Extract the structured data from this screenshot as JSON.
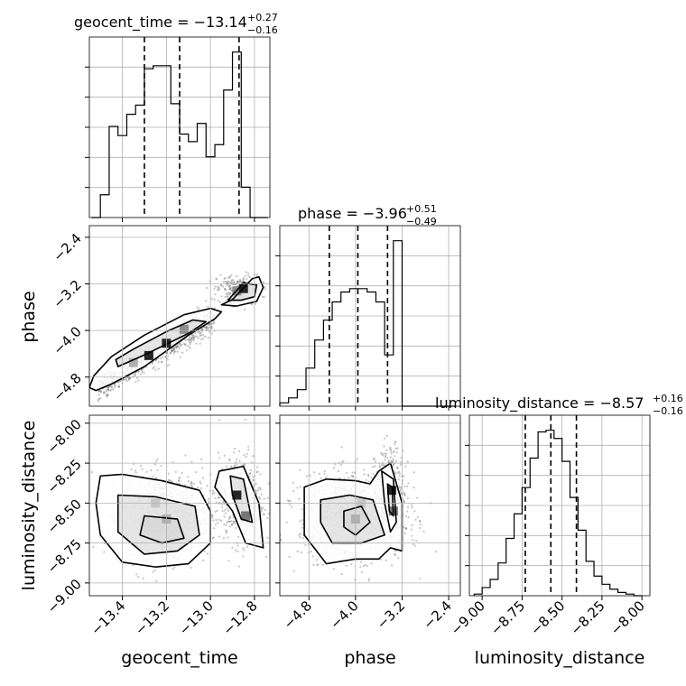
{
  "chart_data": {
    "type": "corner",
    "parameters": [
      "geocent_time",
      "phase",
      "luminosity_distance"
    ],
    "axes": {
      "geocent_time": {
        "range": [
          -13.55,
          -12.73
        ],
        "ticks": [
          -13.4,
          -13.2,
          -13.0,
          -12.8
        ],
        "tick_labels": [
          "−13.4",
          "−13.2",
          "−13.0",
          "−12.8"
        ]
      },
      "phase": {
        "range": [
          -5.3,
          -2.2
        ],
        "ticks": [
          -4.8,
          -4.0,
          -3.2,
          -2.4
        ],
        "tick_labels": [
          "−4.8",
          "−4.0",
          "−3.2",
          "−2.4"
        ]
      },
      "luminosity_distance": {
        "range": [
          -9.08,
          -7.95
        ],
        "ticks": [
          -9.0,
          -8.75,
          -8.5,
          -8.25,
          -8.0
        ],
        "tick_labels": [
          "−9.00",
          "−8.75",
          "−8.50",
          "−8.25",
          "−8.00"
        ]
      }
    },
    "titles": [
      {
        "param": "geocent_time",
        "main": "geocent_time = −13.14",
        "plus": "+0.27",
        "minus": "−0.16"
      },
      {
        "param": "phase",
        "main": "phase = −3.96",
        "plus": "+0.51",
        "minus": "−0.49"
      },
      {
        "param": "luminosity_distance",
        "main": "luminosity_distance = −8.57",
        "plus": "+0.16",
        "minus": "−0.16"
      }
    ],
    "histograms": {
      "geocent_time": {
        "edges": [
          -13.54,
          -13.5,
          -13.46,
          -13.42,
          -13.38,
          -13.34,
          -13.3,
          -13.26,
          -13.22,
          -13.18,
          -13.14,
          -13.1,
          -13.06,
          -13.02,
          -12.98,
          -12.94,
          -12.9,
          -12.86,
          -12.82,
          -12.78,
          -12.74
        ],
        "counts": [
          0,
          0.15,
          0.6,
          0.54,
          0.68,
          0.74,
          0.98,
          1.0,
          1.0,
          0.75,
          0.55,
          0.5,
          0.62,
          0.4,
          0.48,
          0.84,
          1.09,
          0.2,
          0.0,
          0.0
        ],
        "quantiles": [
          -13.3,
          -13.14,
          -12.87
        ]
      },
      "phase": {
        "edges": [
          -5.3,
          -5.15,
          -5.0,
          -4.85,
          -4.7,
          -4.55,
          -4.4,
          -4.25,
          -4.1,
          -3.95,
          -3.8,
          -3.65,
          -3.5,
          -3.35,
          -3.2,
          -3.05,
          -2.9,
          -2.75,
          -2.6,
          -2.45,
          -2.3
        ],
        "counts": [
          0.02,
          0.05,
          0.1,
          0.23,
          0.4,
          0.52,
          0.63,
          0.69,
          0.71,
          0.71,
          0.69,
          0.63,
          0.31,
          1.0,
          0.0,
          0.0,
          0.0,
          0.0,
          0.0,
          0.0
        ],
        "quantiles": [
          -4.45,
          -3.96,
          -3.45
        ]
      },
      "luminosity_distance": {
        "edges": [
          -9.05,
          -9.0,
          -8.95,
          -8.9,
          -8.85,
          -8.8,
          -8.75,
          -8.7,
          -8.65,
          -8.6,
          -8.55,
          -8.5,
          -8.45,
          -8.4,
          -8.35,
          -8.3,
          -8.25,
          -8.2,
          -8.15,
          -8.1,
          -8.05,
          -8.0
        ],
        "counts": [
          0.01,
          0.05,
          0.1,
          0.2,
          0.35,
          0.5,
          0.66,
          0.84,
          1.0,
          1.01,
          0.96,
          0.82,
          0.6,
          0.4,
          0.21,
          0.12,
          0.07,
          0.04,
          0.02,
          0.01,
          0.0
        ],
        "quantiles": [
          -8.73,
          -8.57,
          -8.41
        ]
      }
    },
    "joint": [
      {
        "x": "geocent_time",
        "y": "phase",
        "clusters": [
          {
            "type": "line",
            "from": [
              -13.51,
              -5.0
            ],
            "to": [
              -12.98,
              -3.75
            ],
            "width": 0.12,
            "n": 900
          },
          {
            "type": "blob",
            "center": [
              -12.87,
              -3.3
            ],
            "spread": [
              0.05,
              0.13
            ],
            "n": 260
          }
        ],
        "hot_cells": [
          [
            -13.35,
            -4.55,
            0.35
          ],
          [
            -13.28,
            -4.43,
            0.95
          ],
          [
            -13.2,
            -4.22,
            0.95
          ],
          [
            -13.12,
            -3.98,
            0.5
          ],
          [
            -12.88,
            -3.32,
            0.5
          ],
          [
            -12.85,
            -3.28,
            0.95
          ]
        ],
        "contours": [
          [
            [
              -13.52,
              -5.03
            ],
            [
              -13.45,
              -4.92
            ],
            [
              -13.3,
              -4.62
            ],
            [
              -13.1,
              -4.08
            ],
            [
              -12.98,
              -3.8
            ],
            [
              -12.95,
              -3.68
            ],
            [
              -13.0,
              -3.62
            ],
            [
              -13.12,
              -3.73
            ],
            [
              -13.3,
              -4.08
            ],
            [
              -13.45,
              -4.45
            ],
            [
              -13.53,
              -4.78
            ],
            [
              -13.55,
              -4.98
            ]
          ],
          [
            [
              -13.42,
              -4.62
            ],
            [
              -13.3,
              -4.42
            ],
            [
              -13.1,
              -4.05
            ],
            [
              -13.02,
              -3.85
            ],
            [
              -13.08,
              -3.82
            ],
            [
              -13.2,
              -4.02
            ],
            [
              -13.35,
              -4.32
            ],
            [
              -13.43,
              -4.5
            ]
          ],
          [
            [
              -12.95,
              -3.56
            ],
            [
              -12.9,
              -3.47
            ],
            [
              -12.81,
              -3.11
            ],
            [
              -12.78,
              -3.08
            ],
            [
              -12.76,
              -3.26
            ],
            [
              -12.79,
              -3.5
            ],
            [
              -12.88,
              -3.58
            ]
          ],
          [
            [
              -12.92,
              -3.48
            ],
            [
              -12.85,
              -3.18
            ],
            [
              -12.79,
              -3.22
            ],
            [
              -12.8,
              -3.42
            ],
            [
              -12.86,
              -3.48
            ]
          ]
        ]
      },
      {
        "x": "geocent_time",
        "y": "luminosity_distance",
        "clusters": [
          {
            "type": "blob",
            "center": [
              -13.2,
              -8.58
            ],
            "spread": [
              0.1,
              0.13
            ],
            "n": 1100
          },
          {
            "type": "blob",
            "center": [
              -12.86,
              -8.48
            ],
            "spread": [
              0.05,
              0.14
            ],
            "n": 400
          }
        ],
        "hot_cells": [
          [
            -13.2,
            -8.6,
            0.35
          ],
          [
            -13.25,
            -8.5,
            0.25
          ],
          [
            -12.88,
            -8.45,
            0.95
          ],
          [
            -12.84,
            -8.58,
            0.6
          ]
        ],
        "contours": [
          [
            [
              -13.5,
              -8.33
            ],
            [
              -13.4,
              -8.32
            ],
            [
              -13.22,
              -8.36
            ],
            [
              -13.05,
              -8.42
            ],
            [
              -13.0,
              -8.55
            ],
            [
              -13.0,
              -8.75
            ],
            [
              -13.1,
              -8.88
            ],
            [
              -13.25,
              -8.9
            ],
            [
              -13.4,
              -8.87
            ],
            [
              -13.5,
              -8.7
            ],
            [
              -13.52,
              -8.5
            ]
          ],
          [
            [
              -13.42,
              -8.45
            ],
            [
              -13.25,
              -8.46
            ],
            [
              -13.07,
              -8.52
            ],
            [
              -13.05,
              -8.7
            ],
            [
              -13.15,
              -8.8
            ],
            [
              -13.3,
              -8.82
            ],
            [
              -13.42,
              -8.68
            ]
          ],
          [
            [
              -13.3,
              -8.58
            ],
            [
              -13.15,
              -8.6
            ],
            [
              -13.12,
              -8.72
            ],
            [
              -13.22,
              -8.75
            ],
            [
              -13.32,
              -8.7
            ]
          ],
          [
            [
              -12.96,
              -8.3
            ],
            [
              -12.85,
              -8.27
            ],
            [
              -12.78,
              -8.5
            ],
            [
              -12.76,
              -8.78
            ],
            [
              -12.84,
              -8.75
            ],
            [
              -12.9,
              -8.55
            ],
            [
              -12.98,
              -8.4
            ]
          ],
          [
            [
              -12.91,
              -8.33
            ],
            [
              -12.85,
              -8.35
            ],
            [
              -12.81,
              -8.62
            ],
            [
              -12.86,
              -8.6
            ],
            [
              -12.9,
              -8.45
            ]
          ]
        ]
      },
      {
        "x": "phase",
        "y": "luminosity_distance",
        "clusters": [
          {
            "type": "blob",
            "center": [
              -4.05,
              -8.58
            ],
            "spread": [
              0.45,
              0.13
            ],
            "n": 1100
          },
          {
            "type": "blob",
            "center": [
              -3.4,
              -8.45
            ],
            "spread": [
              0.12,
              0.15
            ],
            "n": 400
          }
        ],
        "hot_cells": [
          [
            -4.0,
            -8.6,
            0.35
          ],
          [
            -3.9,
            -8.5,
            0.25
          ],
          [
            -3.38,
            -8.42,
            0.95
          ],
          [
            -3.35,
            -8.55,
            0.6
          ]
        ],
        "contours": [
          [
            [
              -4.88,
              -8.4
            ],
            [
              -4.5,
              -8.35
            ],
            [
              -4.0,
              -8.36
            ],
            [
              -3.75,
              -8.38
            ],
            [
              -3.6,
              -8.3
            ],
            [
              -3.4,
              -8.25
            ],
            [
              -3.2,
              -8.5
            ],
            [
              -3.2,
              -8.8
            ],
            [
              -3.4,
              -8.78
            ],
            [
              -3.6,
              -8.85
            ],
            [
              -4.0,
              -8.85
            ],
            [
              -4.5,
              -8.88
            ],
            [
              -4.88,
              -8.7
            ]
          ],
          [
            [
              -4.6,
              -8.48
            ],
            [
              -4.1,
              -8.45
            ],
            [
              -3.7,
              -8.48
            ],
            [
              -3.5,
              -8.7
            ],
            [
              -3.9,
              -8.75
            ],
            [
              -4.4,
              -8.75
            ],
            [
              -4.6,
              -8.62
            ]
          ],
          [
            [
              -4.2,
              -8.55
            ],
            [
              -3.9,
              -8.52
            ],
            [
              -3.75,
              -8.62
            ],
            [
              -4.0,
              -8.7
            ],
            [
              -4.2,
              -8.65
            ]
          ],
          [
            [
              -3.55,
              -8.3
            ],
            [
              -3.35,
              -8.35
            ],
            [
              -3.3,
              -8.62
            ],
            [
              -3.4,
              -8.68
            ],
            [
              -3.5,
              -8.5
            ]
          ],
          [
            [
              -3.45,
              -8.38
            ],
            [
              -3.37,
              -8.4
            ],
            [
              -3.35,
              -8.58
            ],
            [
              -3.42,
              -8.55
            ]
          ]
        ]
      }
    ],
    "grid": true
  }
}
